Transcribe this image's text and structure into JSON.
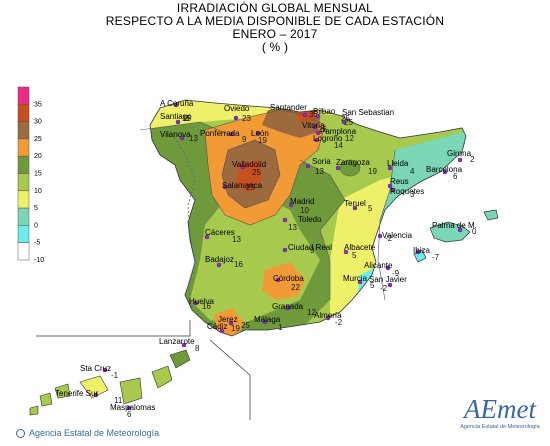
{
  "title": {
    "line1": "IRRADIACIÓN GLOBAL MENSUAL",
    "line2": "RESPECTO A LA MEDIA DISPONIBLE DE CADA ESTACIÓN",
    "line3": "ENERO – 2017",
    "line4": "( % )"
  },
  "legend": {
    "ticks": [
      "35",
      "30",
      "25",
      "20",
      "15",
      "10",
      "5",
      "0",
      "-5",
      "-10"
    ],
    "colors": [
      "#ee2a87",
      "#c8501e",
      "#9c6a3c",
      "#f29a36",
      "#6f9a3c",
      "#a7c94e",
      "#eef06a",
      "#7ad6b4",
      "#6cecec",
      "#ffffff"
    ]
  },
  "stations": [
    {
      "name": "A Coruña",
      "value": "15"
    },
    {
      "name": "Santiago",
      "value": "8"
    },
    {
      "name": "Vilanova",
      "value": "13"
    },
    {
      "name": "Oviedo",
      "value": "23"
    },
    {
      "name": "Ponferrada",
      "value": "9"
    },
    {
      "name": "León",
      "value": "19"
    },
    {
      "name": "Santander",
      "value": "33"
    },
    {
      "name": "Bilbao",
      "value": "25"
    },
    {
      "name": "San Sebastian",
      "value": "25"
    },
    {
      "name": "Vitoria",
      "value": "26"
    },
    {
      "name": "Pamplona",
      "value": "12"
    },
    {
      "name": "Logroño",
      "value": "14"
    },
    {
      "name": "Valladolid",
      "value": "25"
    },
    {
      "name": "Soria",
      "value": "13"
    },
    {
      "name": "Zaragoza",
      "value": "19"
    },
    {
      "name": "Lleida",
      "value": "4"
    },
    {
      "name": "Girona",
      "value": "2"
    },
    {
      "name": "Barcelona",
      "value": "6"
    },
    {
      "name": "Reus",
      "value": ""
    },
    {
      "name": "Roquetes",
      "value": "3"
    },
    {
      "name": "Salamanca",
      "value": "25"
    },
    {
      "name": "Madrid",
      "value": "10"
    },
    {
      "name": "Teruel",
      "value": "5"
    },
    {
      "name": "Toledo",
      "value": "13"
    },
    {
      "name": "Palma de M.",
      "value": "0"
    },
    {
      "name": "Cáceres",
      "value": "13"
    },
    {
      "name": "Ciudad Real",
      "value": "9"
    },
    {
      "name": "Albacete",
      "value": "5"
    },
    {
      "name": "Valencia",
      "value": "-2"
    },
    {
      "name": "Ibiza",
      "value": "-7"
    },
    {
      "name": "Badajoz",
      "value": "16"
    },
    {
      "name": "Alicante",
      "value": "-9"
    },
    {
      "name": "Murcia",
      "value": "5"
    },
    {
      "name": "San Javier",
      "value": "-2"
    },
    {
      "name": "Córdoba",
      "value": "22"
    },
    {
      "name": "Huelva",
      "value": "16"
    },
    {
      "name": "Granada",
      "value": "12"
    },
    {
      "name": "Almería",
      "value": "-2"
    },
    {
      "name": "Jerez",
      "value": "25"
    },
    {
      "name": "Málaga",
      "value": "1"
    },
    {
      "name": "Cádiz",
      "value": "19"
    },
    {
      "name": "Lanzarote",
      "value": "8"
    },
    {
      "name": "Sta Cruz",
      "value": "-1"
    },
    {
      "name": "Tenerife Sur",
      "value": "11"
    },
    {
      "name": "Maspalomas",
      "value": "6"
    }
  ],
  "footer": {
    "agency": "Agencia Estatal de Meteorología"
  },
  "logo": {
    "brand": "AEmet",
    "sub": "Agencia Estatal de Meteorología"
  }
}
